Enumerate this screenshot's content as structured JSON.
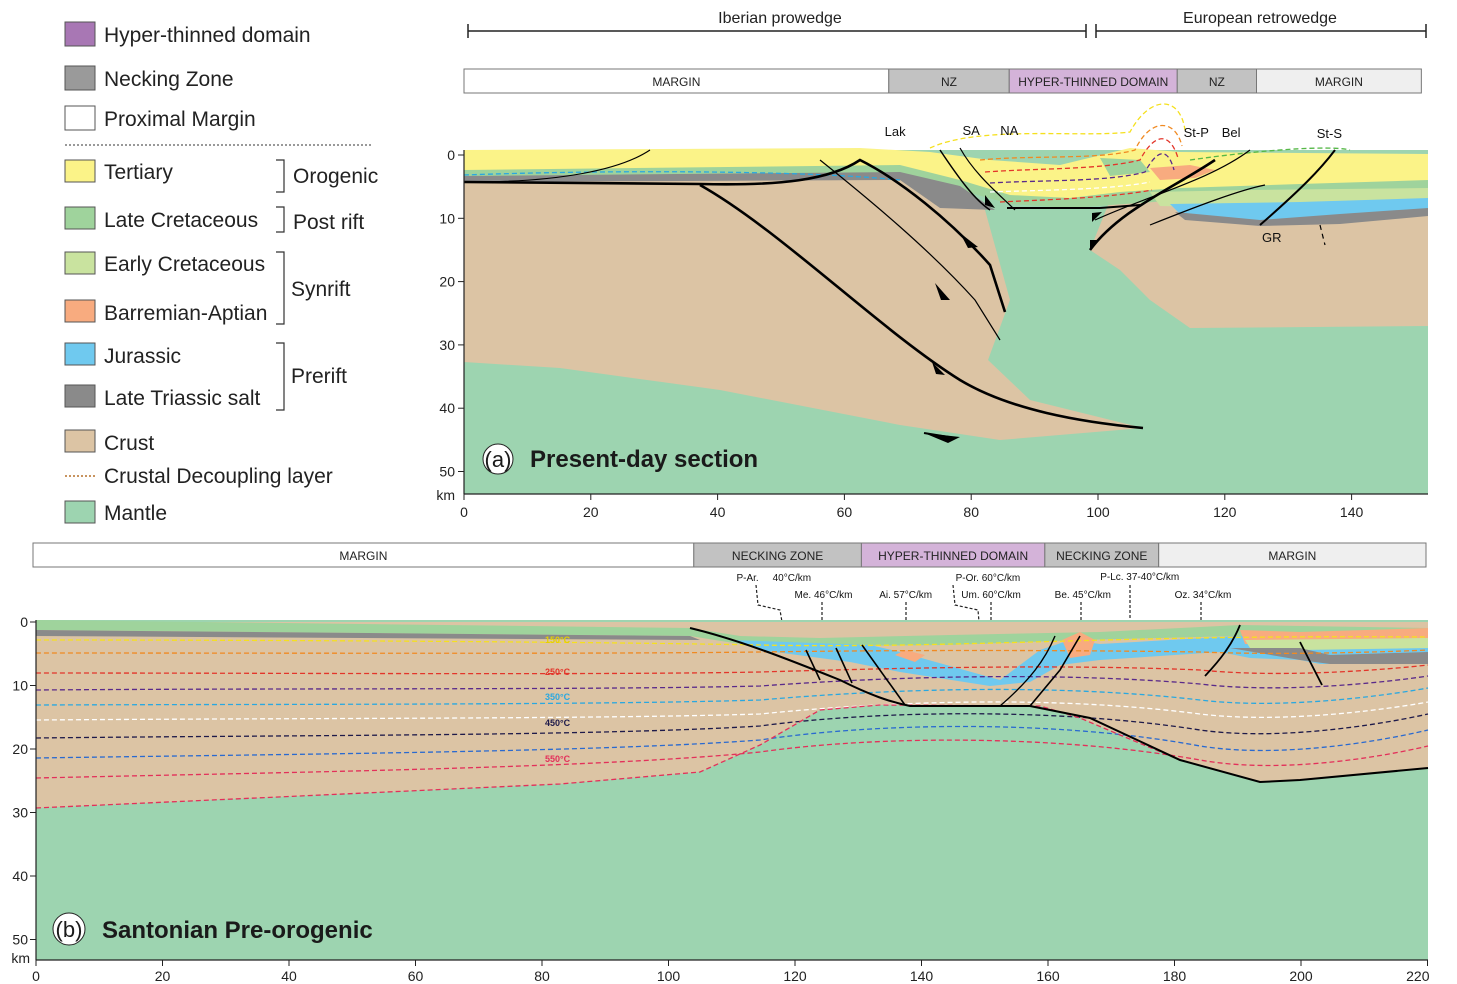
{
  "colors": {
    "hyper_thinned": "#a877b4",
    "necking": "#9a9a9a",
    "proximal": "#ffffff",
    "tertiary": "#fbf388",
    "late_cretaceous": "#9fd39c",
    "early_cretaceous": "#c9e39f",
    "barremian_aptian": "#f8ab7f",
    "jurassic": "#6fc9ef",
    "late_triassic_salt": "#8a8a8a",
    "crust": "#dcc4a4",
    "decoupling": "#b5702b",
    "mantle": "#9dd4b0"
  },
  "legend": {
    "domains": [
      {
        "label": "Hyper-thinned domain",
        "color": "#a877b4"
      },
      {
        "label": "Necking Zone",
        "color": "#9a9a9a"
      },
      {
        "label": "Proximal Margin",
        "color": "#ffffff"
      }
    ],
    "units": [
      {
        "label": "Tertiary",
        "color": "#fbf388"
      },
      {
        "label": "Late Cretaceous",
        "color": "#9fd39c"
      },
      {
        "label": "Early Cretaceous",
        "color": "#c9e39f"
      },
      {
        "label": "Barremian-Aptian",
        "color": "#f8ab7f"
      },
      {
        "label": "Jurassic",
        "color": "#6fc9ef"
      },
      {
        "label": "Late Triassic salt",
        "color": "#8a8a8a"
      },
      {
        "label": "Crust",
        "color": "#dcc4a4"
      }
    ],
    "decoupling_label": "Crustal Decoupling layer",
    "mantle_label": "Mantle",
    "mantle_color": "#9dd4b0",
    "groups": [
      "Orogenic",
      "Post rift",
      "Synrift",
      "Prerift"
    ]
  },
  "panel_a": {
    "letter": "(a)",
    "title": "Present-day section",
    "wedges": {
      "iberian": "Iberian prowedge",
      "european": "European retrowedge"
    },
    "domain_bar": [
      {
        "label": "MARGIN",
        "from": 0,
        "to": 67,
        "fill": "#ffffff"
      },
      {
        "label": "NZ",
        "from": 67,
        "to": 86,
        "fill": "#c2c2c2"
      },
      {
        "label": "HYPER-THINNED DOMAIN",
        "from": 86,
        "to": 112.5,
        "fill": "#d4b3d9"
      },
      {
        "label": "NZ",
        "from": 112.5,
        "to": 125,
        "fill": "#c2c2c2"
      },
      {
        "label": "MARGIN",
        "from": 125,
        "to": 151,
        "fill": "#efefef"
      }
    ],
    "places": [
      {
        "label": "Lak",
        "x": 68
      },
      {
        "label": "SA",
        "x": 80
      },
      {
        "label": "NA",
        "x": 86
      },
      {
        "label": "St-P",
        "x": 115.5
      },
      {
        "label": "Bel",
        "x": 121
      },
      {
        "label": "St-S",
        "x": 136.5
      }
    ],
    "body_label": "GR",
    "x_ticks": [
      "0",
      "20",
      "40",
      "60",
      "80",
      "100",
      "120",
      "140"
    ],
    "y_ticks": [
      "0",
      "10",
      "20",
      "30",
      "40",
      "50"
    ],
    "y_unit": "km"
  },
  "panel_b": {
    "letter": "(b)",
    "title": "Santonian Pre-orogenic",
    "domain_bar": [
      {
        "label": "MARGIN",
        "from": -1,
        "to": 104,
        "fill": "#ffffff"
      },
      {
        "label": "NECKING ZONE",
        "from": 104,
        "to": 130.5,
        "fill": "#c2c2c2"
      },
      {
        "label": "HYPER-THINNED DOMAIN",
        "from": 130.5,
        "to": 159.5,
        "fill": "#d4b3d9"
      },
      {
        "label": "NECKING ZONE",
        "from": 159.5,
        "to": 177.5,
        "fill": "#c2c2c2"
      },
      {
        "label": "MARGIN",
        "from": 177.5,
        "to": 220,
        "fill": "#efefef"
      }
    ],
    "isotherm_labels": [
      "150°C",
      "250°C",
      "350°C",
      "450°C",
      "550°C"
    ],
    "gradients": [
      {
        "label": "P-Ar.",
        "x": 112.5
      },
      {
        "label": "40°C/km",
        "x": 119.5
      },
      {
        "label": "Me. 46°C/km",
        "x": 124.5
      },
      {
        "label": "Ai. 57°C/km",
        "x": 137.5
      },
      {
        "label": "P-Or. 60°C/km",
        "x": 150.5
      },
      {
        "label": "Um. 60°C/km",
        "x": 151
      },
      {
        "label": "Be. 45°C/km",
        "x": 165.5
      },
      {
        "label": "P-Lc. 37-40°C/km",
        "x": 174.5
      },
      {
        "label": "Oz. 34°C/km",
        "x": 184.5
      }
    ],
    "x_ticks": [
      "0",
      "20",
      "40",
      "60",
      "80",
      "100",
      "120",
      "140",
      "160",
      "180",
      "200",
      "220"
    ],
    "y_ticks": [
      "0",
      "10",
      "20",
      "30",
      "40",
      "50"
    ],
    "y_unit": "km"
  }
}
